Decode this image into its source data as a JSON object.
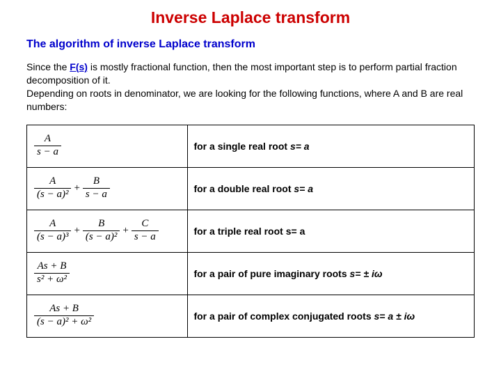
{
  "colors": {
    "title": "#cc0000",
    "subtitle": "#0000cc",
    "fs_link": "#0000cc",
    "text": "#000000",
    "border": "#000000",
    "background": "#ffffff"
  },
  "title": "Inverse Laplace transform",
  "subtitle": "The algorithm of inverse Laplace transform",
  "body": {
    "pre_fs": "Since the ",
    "fs": "F(s)",
    "post_fs": " is mostly fractional function, then the most important step is to perform partial fraction decomposition of it.",
    "line2": "Depending on roots in denominator, we are looking for the following  functions, where A and B are real numbers:"
  },
  "rows": [
    {
      "terms": [
        {
          "num": "A",
          "den": "s − a"
        }
      ],
      "desc_pre": "for a single real root ",
      "desc_ital": "s= a"
    },
    {
      "terms": [
        {
          "num": "A",
          "den": "(s − a)²"
        },
        {
          "num": "B",
          "den": "s − a"
        }
      ],
      "desc_pre": "for a double real root ",
      "desc_ital": "s= a"
    },
    {
      "terms": [
        {
          "num": "A",
          "den": "(s − a)³"
        },
        {
          "num": "B",
          "den": "(s − a)²"
        },
        {
          "num": "C",
          "den": "s − a"
        }
      ],
      "desc_pre": "for a triple real root s= a",
      "desc_ital": ""
    },
    {
      "terms": [
        {
          "num": "As + B",
          "den": "s² + ω²"
        }
      ],
      "desc_pre": "for a pair of pure imaginary roots ",
      "desc_ital": "s= ± iω"
    },
    {
      "terms": [
        {
          "num": "As + B",
          "den": "(s − a)² + ω²"
        }
      ],
      "desc_pre": "for a pair of complex conjugated roots ",
      "desc_ital": "s= a ± iω"
    }
  ]
}
